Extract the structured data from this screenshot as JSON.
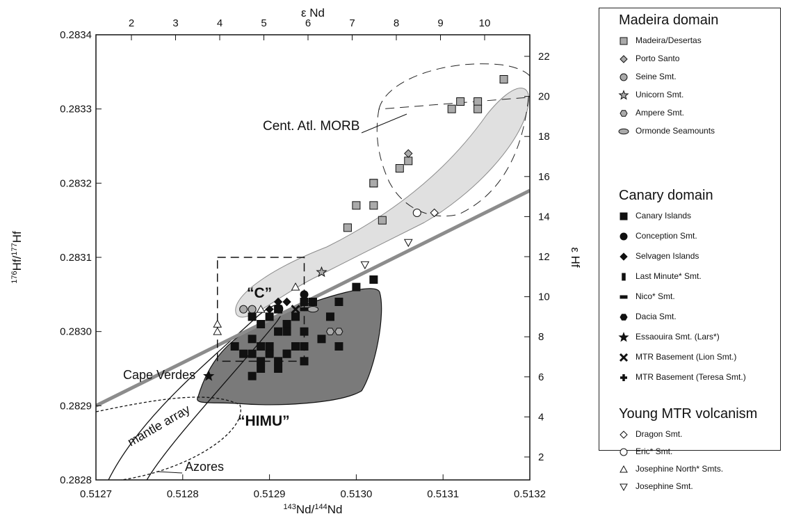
{
  "chart_data": {
    "type": "scatter",
    "xlabel": "143Nd/144Nd",
    "ylabel": "176Hf/177Hf",
    "top_axis_label": "ε Nd",
    "right_axis_label": "ε Hf",
    "xlim": [
      0.5127,
      0.5132
    ],
    "ylim": [
      0.2828,
      0.2834
    ],
    "x_ticks": [
      "0.5127",
      "0.5128",
      "0.5129",
      "0.5130",
      "0.5131",
      "0.5132"
    ],
    "y_ticks": [
      "0.2828",
      "0.2829",
      "0.2830",
      "0.2831",
      "0.2832",
      "0.2833",
      "0.2834"
    ],
    "top_ticks": [
      "2",
      "3",
      "4",
      "5",
      "6",
      "7",
      "8",
      "9",
      "10"
    ],
    "right_ticks": [
      "2",
      "4",
      "6",
      "8",
      "10",
      "12",
      "14",
      "16",
      "18",
      "20",
      "22"
    ],
    "annotations": {
      "morb": "Cent. Atl. MORB",
      "cape_verdes": "Cape Verdes",
      "mantle_array": "mantle array",
      "c": "“C”",
      "himu": "“HIMU”",
      "azores": "Azores"
    },
    "series": [
      {
        "name": "Madeira/Desertas",
        "marker": "square",
        "fill": "#aaaaaa",
        "points": [
          [
            0.51317,
            0.28334
          ],
          [
            0.51314,
            0.28331
          ],
          [
            0.51314,
            0.2833
          ],
          [
            0.51312,
            0.28331
          ],
          [
            0.51311,
            0.2833
          ],
          [
            0.51305,
            0.28322
          ],
          [
            0.51306,
            0.28323
          ],
          [
            0.51302,
            0.2832
          ],
          [
            0.51302,
            0.2832
          ],
          [
            0.513,
            0.28317
          ],
          [
            0.51302,
            0.28317
          ],
          [
            0.51303,
            0.28315
          ],
          [
            0.51299,
            0.28314
          ]
        ]
      },
      {
        "name": "Porto Santo",
        "marker": "diamond",
        "fill": "#aaaaaa",
        "points": [
          [
            0.51306,
            0.28324
          ]
        ]
      },
      {
        "name": "Seine Smt.",
        "marker": "circle",
        "fill": "#aaaaaa",
        "points": [
          [
            0.51287,
            0.28303
          ],
          [
            0.51288,
            0.28303
          ]
        ]
      },
      {
        "name": "Unicorn Smt.",
        "marker": "star",
        "fill": "#aaaaaa",
        "points": [
          [
            0.51296,
            0.28308
          ]
        ]
      },
      {
        "name": "Ampere Smt.",
        "marker": "hexagon",
        "fill": "#aaaaaa",
        "points": [
          [
            0.51297,
            0.283
          ],
          [
            0.51298,
            0.283
          ]
        ]
      },
      {
        "name": "Ormonde Seamounts",
        "marker": "ellipse",
        "fill": "#aaaaaa",
        "points": [
          [
            0.51295,
            0.28303
          ]
        ]
      },
      {
        "name": "Canary Islands",
        "marker": "square",
        "fill": "#111111",
        "points": [
          [
            0.51302,
            0.28307
          ],
          [
            0.513,
            0.28306
          ],
          [
            0.51298,
            0.28304
          ],
          [
            0.51297,
            0.28302
          ],
          [
            0.51294,
            0.28304
          ],
          [
            0.51295,
            0.28304
          ],
          [
            0.51293,
            0.28302
          ],
          [
            0.51292,
            0.28301
          ],
          [
            0.51291,
            0.28303
          ],
          [
            0.5129,
            0.28302
          ],
          [
            0.51289,
            0.28301
          ],
          [
            0.51288,
            0.28302
          ],
          [
            0.51294,
            0.283
          ],
          [
            0.51296,
            0.28299
          ],
          [
            0.51298,
            0.28298
          ],
          [
            0.51293,
            0.28298
          ],
          [
            0.51291,
            0.283
          ],
          [
            0.5129,
            0.28298
          ],
          [
            0.51289,
            0.28298
          ],
          [
            0.51288,
            0.28297
          ],
          [
            0.51288,
            0.28299
          ],
          [
            0.51286,
            0.28298
          ],
          [
            0.51287,
            0.28297
          ],
          [
            0.51289,
            0.28296
          ],
          [
            0.5129,
            0.28297
          ],
          [
            0.51292,
            0.283
          ],
          [
            0.51292,
            0.28297
          ],
          [
            0.51291,
            0.28296
          ],
          [
            0.51289,
            0.28295
          ],
          [
            0.51292,
            0.28297
          ],
          [
            0.51291,
            0.28295
          ],
          [
            0.51288,
            0.28294
          ],
          [
            0.51293,
            0.28298
          ],
          [
            0.51294,
            0.28298
          ],
          [
            0.51294,
            0.28296
          ]
        ]
      },
      {
        "name": "Conception Smt.",
        "marker": "circle",
        "fill": "#111111",
        "points": [
          [
            0.51294,
            0.28305
          ]
        ]
      },
      {
        "name": "Selvagen Islands",
        "marker": "diamond",
        "fill": "#111111",
        "points": [
          [
            0.51291,
            0.28304
          ],
          [
            0.51292,
            0.28304
          ],
          [
            0.51291,
            0.28303
          ],
          [
            0.5129,
            0.28303
          ]
        ]
      },
      {
        "name": "Last Minute* Smt.",
        "marker": "bar-v",
        "fill": "#111111",
        "points": [
          [
            0.51295,
            0.28304
          ]
        ]
      },
      {
        "name": "Nico* Smt.",
        "marker": "bar-h",
        "fill": "#111111",
        "points": [
          [
            0.51294,
            0.28303
          ]
        ]
      },
      {
        "name": "Dacia Smt.",
        "marker": "hexagon",
        "fill": "#111111",
        "points": [
          [
            0.51294,
            0.28304
          ]
        ]
      },
      {
        "name": "Essaouira Smt. (Lars*)",
        "marker": "star",
        "fill": "#111111",
        "points": [
          [
            0.51283,
            0.28294
          ]
        ]
      },
      {
        "name": "MTR Basement (Lion Smt.)",
        "marker": "x",
        "fill": "#111111",
        "points": [
          [
            0.51293,
            0.28303
          ]
        ]
      },
      {
        "name": "MTR Basement (Teresa Smt.)",
        "marker": "plus",
        "fill": "#111111",
        "points": [
          [
            0.51294,
            0.28298
          ]
        ]
      },
      {
        "name": "Dragon Smt.",
        "marker": "diamond",
        "fill": "#ffffff",
        "points": [
          [
            0.51309,
            0.28316
          ]
        ]
      },
      {
        "name": "Eric* Smt.",
        "marker": "circle",
        "fill": "#ffffff",
        "points": [
          [
            0.51307,
            0.28316
          ]
        ]
      },
      {
        "name": "Josephine North* Smts.",
        "marker": "triangle-up",
        "fill": "#ffffff",
        "points": [
          [
            0.51293,
            0.28306
          ],
          [
            0.51289,
            0.28303
          ],
          [
            0.51284,
            0.28301
          ],
          [
            0.51284,
            0.283
          ]
        ]
      },
      {
        "name": "Josephine Smt.",
        "marker": "triangle-down",
        "fill": "#ffffff",
        "points": [
          [
            0.51301,
            0.28309
          ],
          [
            0.51306,
            0.28312
          ]
        ]
      }
    ],
    "regions": [
      {
        "name": "Cent. Atl. MORB",
        "style": "dashed-outline"
      },
      {
        "name": "Madeira domain field",
        "style": "light-grey-fill"
      },
      {
        "name": "Canary domain field",
        "style": "dark-grey-fill"
      },
      {
        "name": "Cape Verdes",
        "style": "dotted-outline"
      },
      {
        "name": "Azores",
        "style": "solid-outline"
      },
      {
        "name": "C",
        "style": "dashed-box",
        "x_range": [
          0.51284,
          0.51294
        ],
        "y_range": [
          0.28296,
          0.2831
        ]
      },
      {
        "name": "mantle array",
        "style": "thick-grey-line",
        "line": [
          [
            0.5127,
            0.2829
          ],
          [
            0.5132,
            0.28319
          ]
        ]
      }
    ]
  },
  "legend": {
    "madeira_heading": "Madeira domain",
    "canary_heading": "Canary domain",
    "young_heading": "Young MTR volcanism",
    "madeira_items": [
      "Madeira/Desertas",
      "Porto Santo",
      "Seine Smt.",
      "Unicorn Smt.",
      "Ampere Smt.",
      "Ormonde Seamounts"
    ],
    "canary_items": [
      "Canary Islands",
      "Conception Smt.",
      "Selvagen Islands",
      "Last Minute* Smt.",
      "Nico* Smt.",
      "Dacia Smt.",
      "Essaouira Smt. (Lars*)",
      "MTR Basement (Lion Smt.)",
      "MTR Basement (Teresa Smt.)"
    ],
    "young_items": [
      "Dragon Smt.",
      "Eric* Smt.",
      "Josephine North* Smts.",
      "Josephine Smt."
    ]
  }
}
